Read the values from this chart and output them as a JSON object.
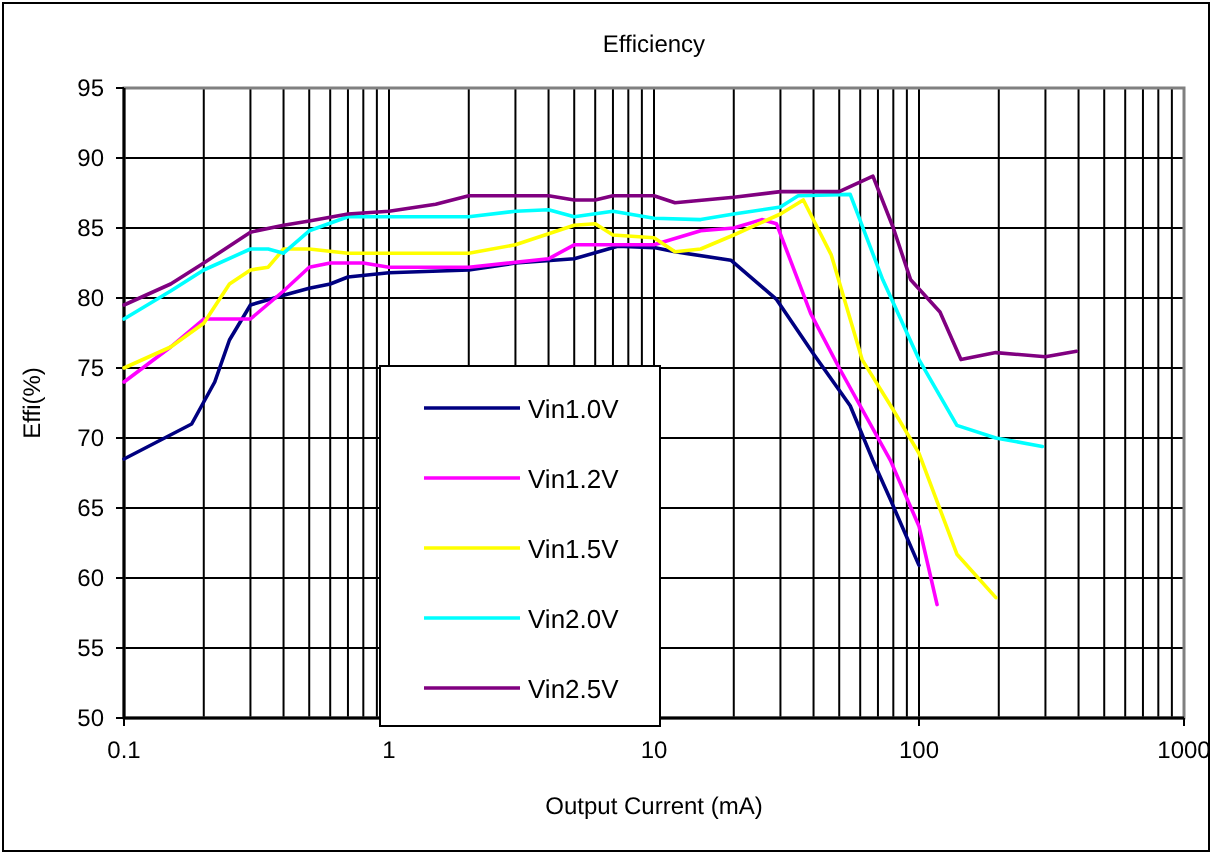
{
  "chart_data": {
    "type": "line",
    "title": "Efficiency",
    "xlabel": "Output Current (mA)",
    "ylabel": "Effi(%)",
    "log": "x",
    "grid": true,
    "legend": "bottom",
    "marker": "none",
    "line_style": "solid",
    "xlim": [
      0.1,
      1000
    ],
    "xticks": [
      0.1,
      1,
      10,
      100,
      1000
    ],
    "ylim": [
      50,
      95
    ],
    "yticks": [
      50,
      55,
      60,
      65,
      70,
      75,
      80,
      85,
      90,
      95
    ],
    "series": [
      {
        "name": "Vin1.0V",
        "color": "#000080",
        "x": [
          0.1,
          0.18,
          0.22,
          0.25,
          0.3,
          0.4,
          0.5,
          0.6,
          0.7,
          1,
          2,
          3,
          5,
          7.3,
          10,
          12,
          19.5,
          29,
          40,
          55,
          67,
          78,
          100
        ],
        "values": [
          68.5,
          71,
          74,
          77,
          79.5,
          80.2,
          80.7,
          81,
          81.5,
          81.8,
          82,
          82.5,
          82.8,
          83.7,
          83.6,
          83.3,
          82.7,
          79.9,
          76,
          72.3,
          68.4,
          65.6,
          60.9
        ]
      },
      {
        "name": "Vin1.2V",
        "color": "#ff00ff",
        "x": [
          0.1,
          0.15,
          0.2,
          0.3,
          0.4,
          0.5,
          0.6,
          0.8,
          1,
          2,
          4,
          5,
          8,
          10,
          15,
          20,
          25.5,
          29,
          39,
          50,
          78,
          100,
          117
        ],
        "values": [
          74,
          76.5,
          78.5,
          78.5,
          80.5,
          82.2,
          82.5,
          82.5,
          82.2,
          82.2,
          82.8,
          83.8,
          83.8,
          83.8,
          84.8,
          85,
          85.6,
          85.3,
          78.9,
          75,
          68.4,
          63.7,
          58.1
        ]
      },
      {
        "name": "Vin1.5V",
        "color": "#ffff00",
        "x": [
          0.1,
          0.15,
          0.2,
          0.25,
          0.3,
          0.35,
          0.4,
          0.5,
          0.7,
          1,
          2,
          3,
          5,
          6,
          7,
          10,
          12,
          15,
          20,
          30,
          36.6,
          46.6,
          61,
          80,
          100,
          139,
          195
        ],
        "values": [
          75,
          76.5,
          78.2,
          81,
          82,
          82.2,
          83.5,
          83.5,
          83.2,
          83.2,
          83.2,
          83.8,
          85.2,
          85.3,
          84.5,
          84.3,
          83.3,
          83.5,
          84.5,
          86,
          87,
          83.1,
          75.6,
          72,
          68.9,
          61.7,
          58.6
        ]
      },
      {
        "name": "Vin2.0V",
        "color": "#00ffff",
        "x": [
          0.1,
          0.15,
          0.2,
          0.3,
          0.35,
          0.4,
          0.5,
          0.7,
          1,
          2,
          3,
          4,
          5,
          7,
          10,
          15,
          20,
          30,
          35,
          55,
          73,
          100,
          139,
          195,
          292
        ],
        "values": [
          78.5,
          80.5,
          82,
          83.5,
          83.5,
          83.2,
          84.8,
          85.8,
          85.8,
          85.8,
          86.2,
          86.3,
          85.8,
          86.2,
          85.7,
          85.6,
          86,
          86.5,
          87.3,
          87.4,
          81.3,
          75.6,
          70.9,
          70,
          69.4
        ]
      },
      {
        "name": "Vin2.5V",
        "color": "#800080",
        "x": [
          0.1,
          0.15,
          0.2,
          0.3,
          0.4,
          0.5,
          0.7,
          1,
          1.5,
          2,
          3,
          4,
          5,
          6,
          7,
          10,
          12,
          20,
          30,
          50,
          67,
          80,
          93,
          120,
          144,
          195,
          300,
          393
        ],
        "values": [
          79.5,
          81,
          82.5,
          84.7,
          85.2,
          85.5,
          86,
          86.2,
          86.7,
          87.3,
          87.3,
          87.3,
          87,
          87,
          87.3,
          87.3,
          86.8,
          87.2,
          87.6,
          87.6,
          88.7,
          85,
          81.3,
          79,
          75.6,
          76.1,
          75.8,
          76.2
        ]
      }
    ]
  }
}
